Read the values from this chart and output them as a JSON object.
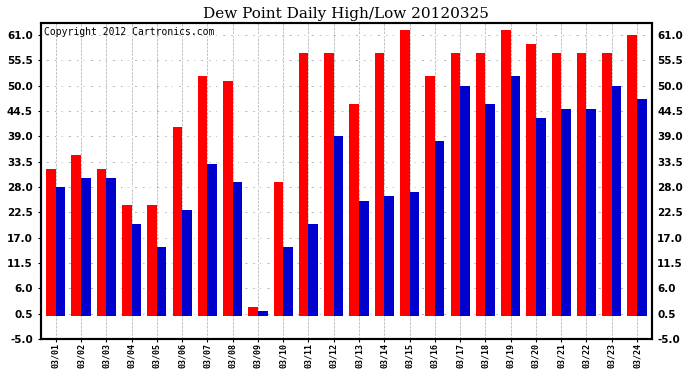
{
  "title": "Dew Point Daily High/Low 20120325",
  "copyright": "Copyright 2012 Cartronics.com",
  "dates": [
    "03/01",
    "03/02",
    "03/03",
    "03/04",
    "03/05",
    "03/06",
    "03/07",
    "03/08",
    "03/09",
    "03/10",
    "03/11",
    "03/12",
    "03/13",
    "03/14",
    "03/15",
    "03/16",
    "03/17",
    "03/18",
    "03/19",
    "03/20",
    "03/21",
    "03/22",
    "03/23",
    "03/24"
  ],
  "high": [
    32,
    35,
    32,
    24,
    24,
    41,
    52,
    51,
    2,
    29,
    57,
    57,
    46,
    57,
    62,
    52,
    57,
    57,
    62,
    59,
    57,
    57,
    57,
    61
  ],
  "low": [
    28,
    30,
    30,
    20,
    15,
    23,
    33,
    29,
    1,
    15,
    20,
    39,
    25,
    26,
    27,
    38,
    50,
    46,
    52,
    43,
    45,
    45,
    50,
    47
  ],
  "high_color": "#ff0000",
  "low_color": "#0000cc",
  "bg_color": "#ffffff",
  "ylim_min": -5.0,
  "ylim_max": 63.5,
  "yticks": [
    -5.0,
    0.5,
    6.0,
    11.5,
    17.0,
    22.5,
    28.0,
    33.5,
    39.0,
    44.5,
    50.0,
    55.5,
    61.0
  ],
  "grid_color": "#aaaaaa",
  "title_fontsize": 11,
  "copyright_fontsize": 7,
  "fig_width": 6.9,
  "fig_height": 3.75,
  "dpi": 100
}
